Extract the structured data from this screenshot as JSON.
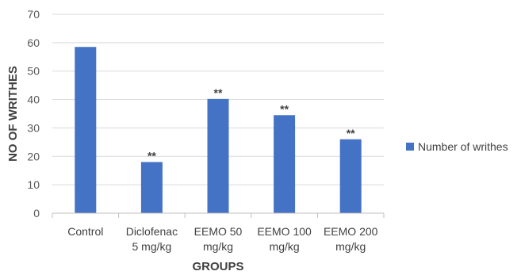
{
  "chart_data": {
    "type": "bar",
    "categories": [
      "Control",
      "Diclofenac\n5 mg/kg",
      "EEMO 50\nmg/kg",
      "EEMO 100\nmg/kg",
      "EEMO 200\nmg/kg"
    ],
    "series": [
      {
        "name": "Number of writhes",
        "values": [
          58.5,
          18.0,
          40.2,
          34.5,
          26.0
        ],
        "annotations": [
          "",
          "**",
          "**",
          "**",
          "**"
        ],
        "color": "#4472C4"
      }
    ],
    "xlabel": "GROUPS",
    "ylabel": "NO OF WRITHES",
    "ylim": [
      0,
      70
    ],
    "yticks": [
      0,
      10,
      20,
      30,
      40,
      50,
      60,
      70
    ],
    "grid": true,
    "gridColor": "#d9d9d9",
    "legend_position": "right"
  }
}
